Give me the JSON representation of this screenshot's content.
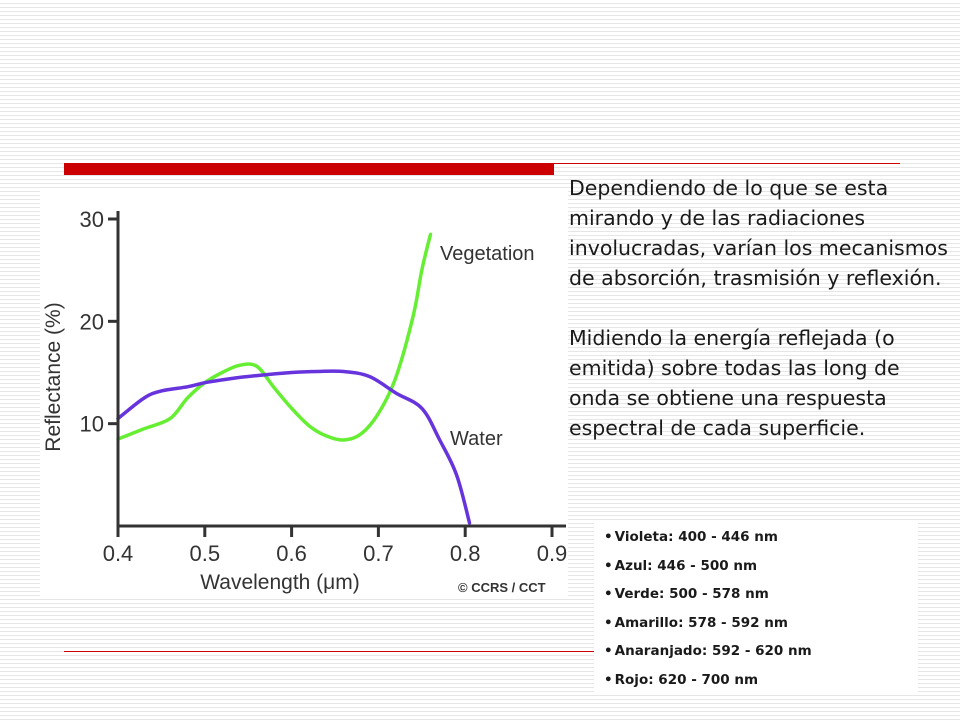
{
  "paragraphs": [
    "Dependiendo de lo que se esta mirando y de las radiaciones involucradas, varían los mecanismos de absorción, trasmisión y reflexión.",
    "Midiendo la energía reflejada (o emitida) sobre todas las long de onda se obtiene una respuesta espectral de cada superficie."
  ],
  "bands": [
    "Violeta: 400 - 446 nm",
    "Azul: 446 - 500 nm",
    "Verde: 500 - 578 nm",
    "Amarillo: 578 - 592 nm",
    "Anaranjado: 592 - 620 nm",
    "Rojo: 620 - 700 nm"
  ],
  "chart_data": {
    "type": "line",
    "xlabel": "Wavelength (μm)",
    "ylabel": "Reflectance (%)",
    "credit": "© CCRS / CCT",
    "xlim": [
      0.4,
      0.9
    ],
    "ylim": [
      0,
      30
    ],
    "xticks": [
      "0.4",
      "0.5",
      "0.6",
      "0.7",
      "0.8",
      "0.9"
    ],
    "yticks": [
      "10",
      "20",
      "30"
    ],
    "grid": false,
    "series": [
      {
        "name": "Vegetation",
        "color": "#66ee33",
        "points": [
          [
            0.4,
            8.5
          ],
          [
            0.43,
            9.5
          ],
          [
            0.46,
            10.5
          ],
          [
            0.48,
            12.5
          ],
          [
            0.5,
            14.0
          ],
          [
            0.52,
            15.0
          ],
          [
            0.54,
            15.7
          ],
          [
            0.56,
            15.6
          ],
          [
            0.58,
            13.5
          ],
          [
            0.6,
            11.5
          ],
          [
            0.62,
            9.8
          ],
          [
            0.64,
            8.8
          ],
          [
            0.66,
            8.4
          ],
          [
            0.68,
            9.0
          ],
          [
            0.7,
            11.0
          ],
          [
            0.72,
            14.5
          ],
          [
            0.74,
            20.5
          ],
          [
            0.75,
            25.0
          ],
          [
            0.76,
            28.5
          ]
        ]
      },
      {
        "name": "Water",
        "color": "#6633dd",
        "points": [
          [
            0.4,
            10.5
          ],
          [
            0.43,
            12.5
          ],
          [
            0.45,
            13.2
          ],
          [
            0.48,
            13.6
          ],
          [
            0.5,
            14.0
          ],
          [
            0.53,
            14.4
          ],
          [
            0.56,
            14.7
          ],
          [
            0.6,
            15.0
          ],
          [
            0.63,
            15.1
          ],
          [
            0.66,
            15.1
          ],
          [
            0.69,
            14.6
          ],
          [
            0.72,
            13.0
          ],
          [
            0.75,
            11.5
          ],
          [
            0.77,
            8.5
          ],
          [
            0.79,
            5.0
          ],
          [
            0.805,
            0.3
          ]
        ]
      }
    ]
  }
}
